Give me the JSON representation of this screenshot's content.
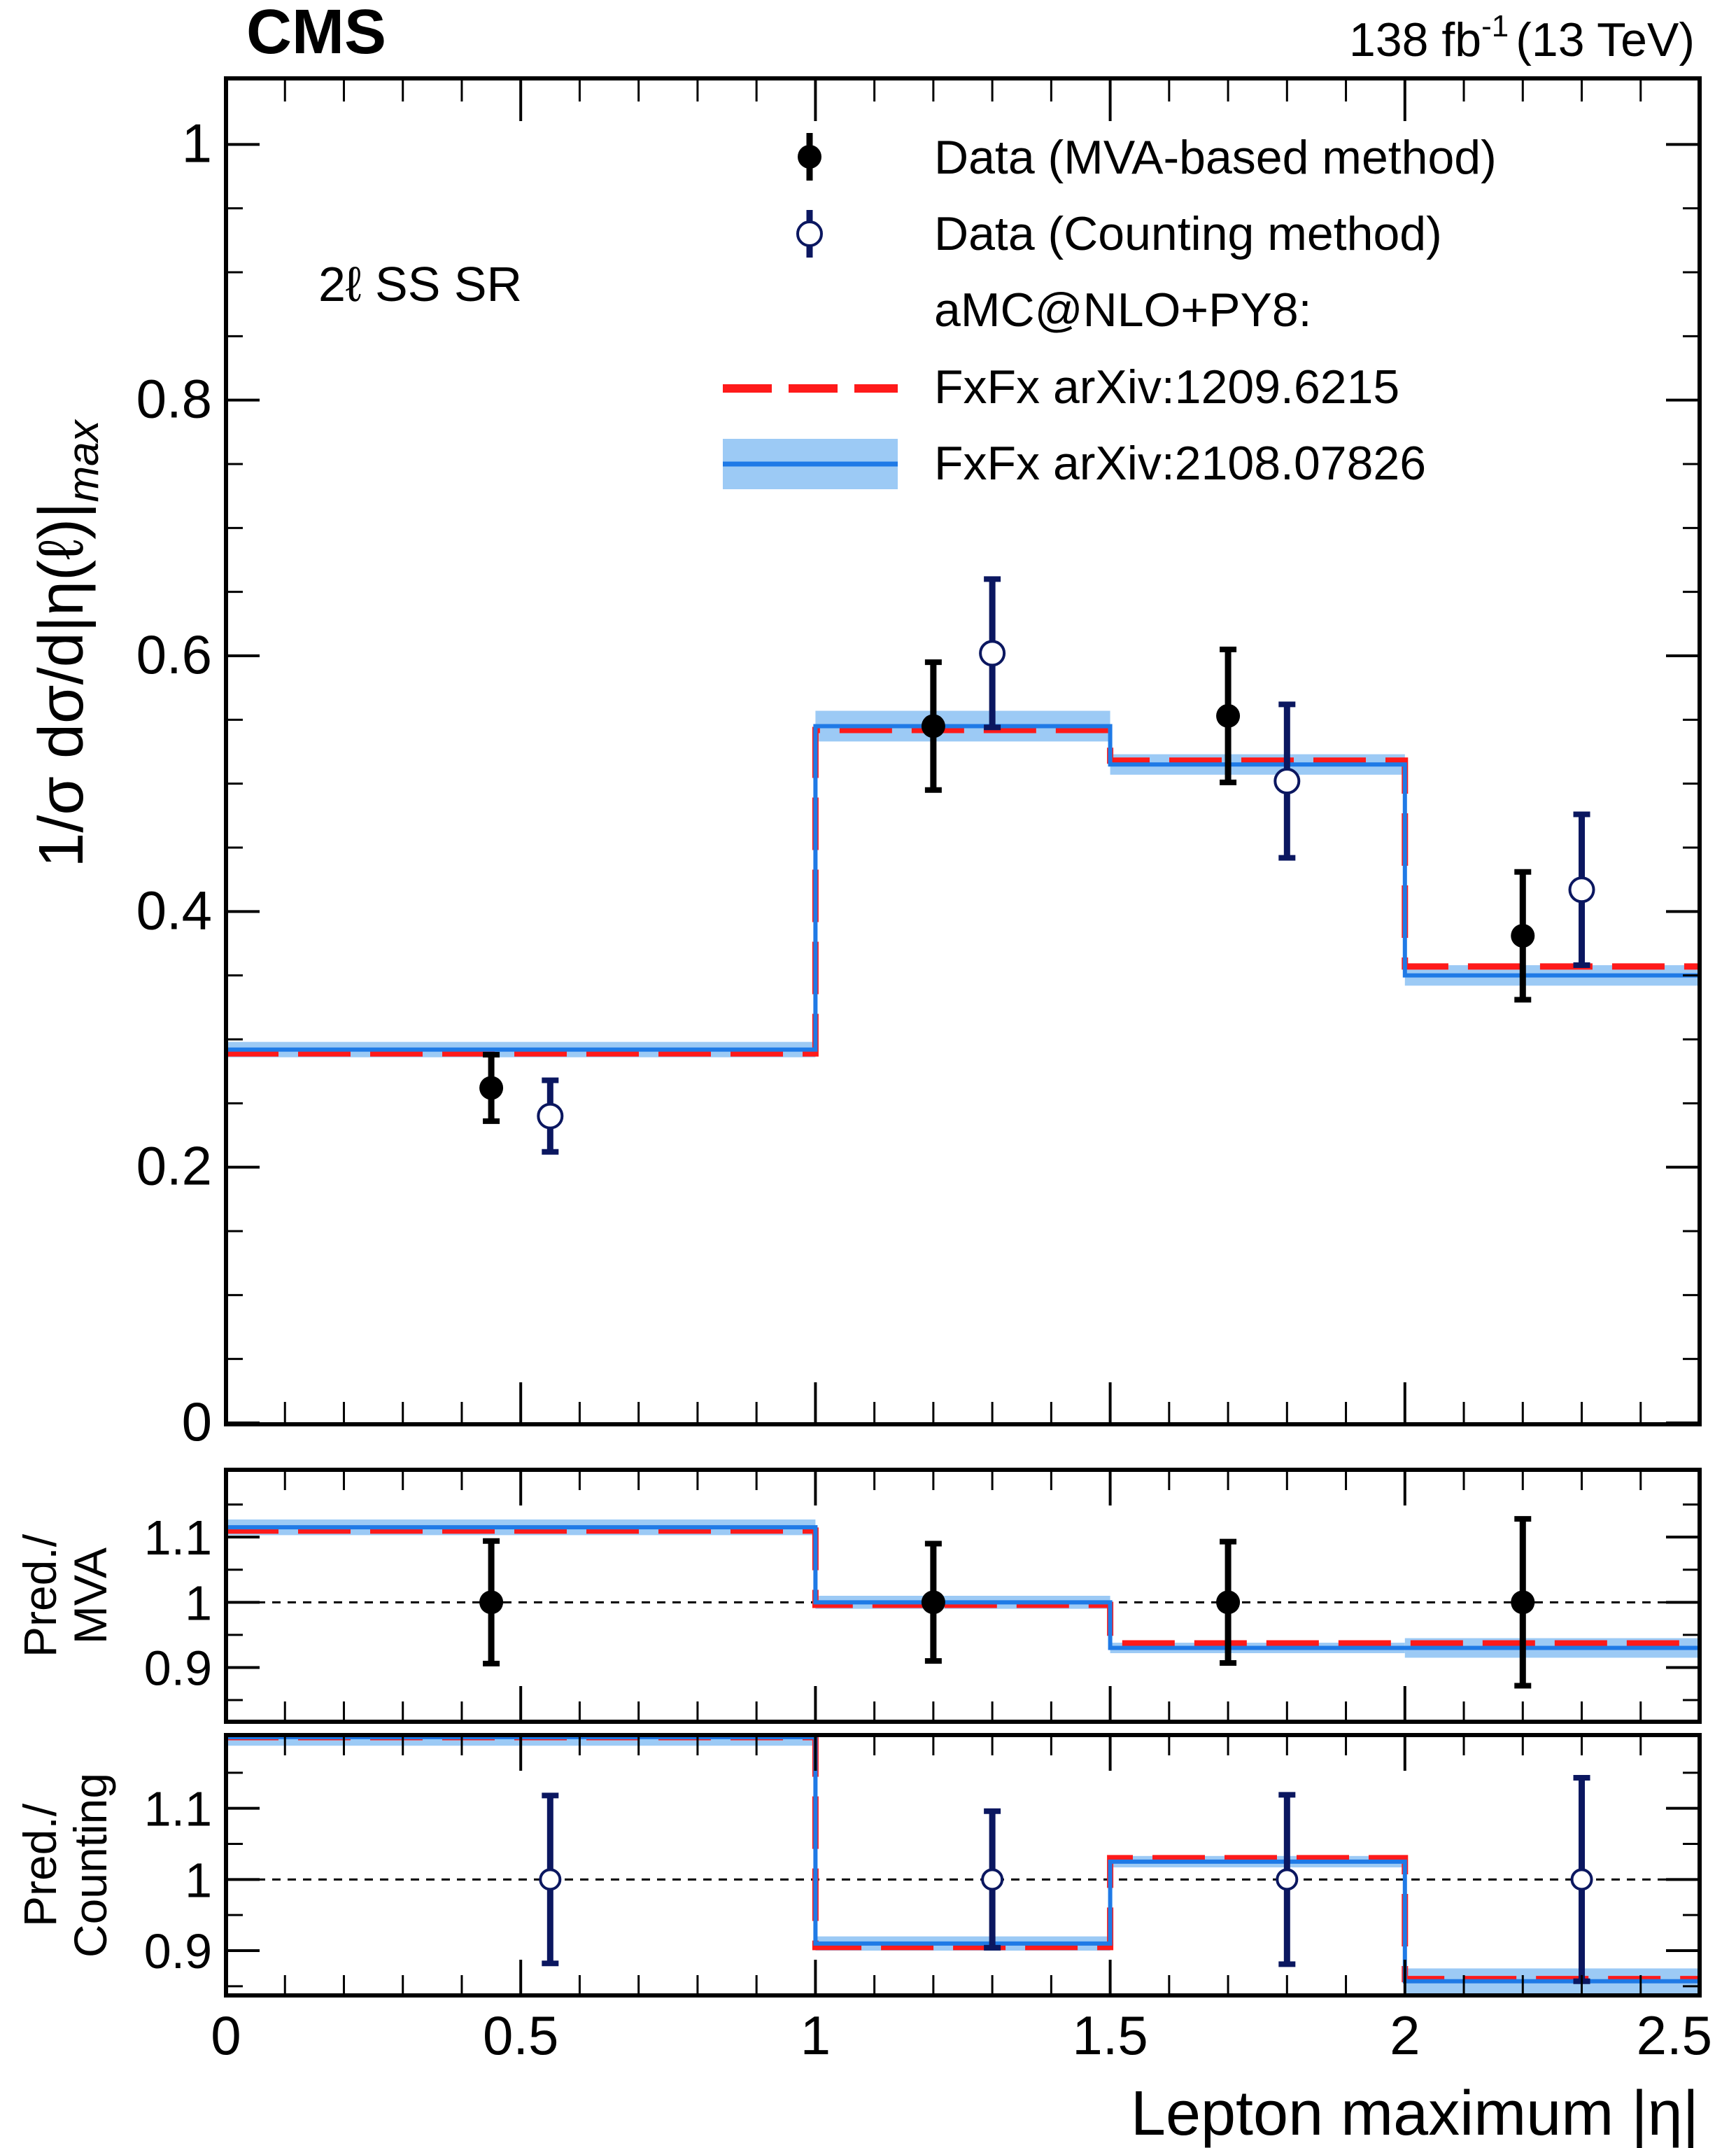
{
  "chart_data": {
    "type": "step-histogram-with-points",
    "experiment": "CMS",
    "lumi_label": "138 fb",
    "lumi_exponent": "-1",
    "energy_label": "(13 TeV)",
    "region_label": "2ℓ SS SR",
    "xlabel": "Lepton maximum |η|",
    "xlim": [
      0,
      2.5
    ],
    "bin_edges": [
      0,
      1.0,
      1.5,
      2.0,
      2.5
    ],
    "x_ticks": [
      {
        "value": 0,
        "label": "0"
      },
      {
        "value": 0.5,
        "label": "0.5"
      },
      {
        "value": 1,
        "label": "1"
      },
      {
        "value": 1.5,
        "label": "1.5"
      },
      {
        "value": 2,
        "label": "2"
      },
      {
        "value": 2.5,
        "label": "2.5"
      }
    ],
    "legend": {
      "mva": "Data (MVA-based method)",
      "counting": "Data (Counting method)",
      "generator_header": "aMC@NLO+PY8:",
      "fxfx_old": "FxFx arXiv:1209.6215",
      "fxfx_new": "FxFx arXiv:2108.07826"
    },
    "colors": {
      "mva": "#000000",
      "counting": "#0b1760",
      "fxfx_old": "#ff1a1a",
      "fxfx_new": "#1f7ae6",
      "fxfx_new_band": "#9ccaf5"
    },
    "main": {
      "ylabel": "1/σ dσ/d|η(ℓ)|",
      "ylabel_subscript": "max",
      "ylim": [
        0,
        1.05
      ],
      "y_ticks": [
        {
          "value": 0,
          "label": "0"
        },
        {
          "value": 0.2,
          "label": "0.2"
        },
        {
          "value": 0.4,
          "label": "0.4"
        },
        {
          "value": 0.6,
          "label": "0.6"
        },
        {
          "value": 0.8,
          "label": "0.8"
        },
        {
          "value": 1,
          "label": "1"
        }
      ],
      "fxfx_old": [
        0.289,
        0.542,
        0.518,
        0.357
      ],
      "fxfx_new": [
        0.292,
        0.545,
        0.515,
        0.35
      ],
      "fxfx_new_band": [
        0.006,
        0.012,
        0.008,
        0.008
      ],
      "mva_points": [
        {
          "x": 0.45,
          "y": 0.262,
          "err": 0.026
        },
        {
          "x": 1.2,
          "y": 0.545,
          "err": 0.05
        },
        {
          "x": 1.7,
          "y": 0.553,
          "err": 0.052
        },
        {
          "x": 2.2,
          "y": 0.381,
          "err": 0.05
        }
      ],
      "counting_points": [
        {
          "x": 0.55,
          "y": 0.24,
          "err": 0.028
        },
        {
          "x": 1.3,
          "y": 0.602,
          "err": 0.058
        },
        {
          "x": 1.8,
          "y": 0.502,
          "err": 0.06
        },
        {
          "x": 2.3,
          "y": 0.417,
          "err": 0.059
        }
      ]
    },
    "ratio_mva": {
      "ylabel_line1": "Pred./",
      "ylabel_line2": "MVA",
      "ylim": [
        0.82,
        1.2
      ],
      "y_ticks": [
        {
          "value": 0.9,
          "label": "0.9"
        },
        {
          "value": 1.0,
          "label": "1"
        },
        {
          "value": 1.1,
          "label": "1.1"
        }
      ],
      "fxfx_old": [
        1.11,
        0.996,
        0.937,
        0.937
      ],
      "fxfx_new": [
        1.115,
        1.0,
        0.93,
        0.93
      ],
      "fxfx_new_band": [
        0.012,
        0.01,
        0.008,
        0.015
      ],
      "points": [
        {
          "x": 0.45,
          "y": 1.0,
          "err": 0.094
        },
        {
          "x": 1.2,
          "y": 1.0,
          "err": 0.09
        },
        {
          "x": 1.7,
          "y": 1.0,
          "err": 0.093
        },
        {
          "x": 2.2,
          "y": 1.0,
          "err": 0.128
        }
      ]
    },
    "ratio_counting": {
      "ylabel_line1": "Pred./",
      "ylabel_line2": "Counting",
      "ylim": [
        0.84,
        1.2
      ],
      "y_ticks": [
        {
          "value": 0.9,
          "label": "0.9"
        },
        {
          "value": 1.0,
          "label": "1"
        },
        {
          "value": 1.1,
          "label": "1.1"
        }
      ],
      "fxfx_old": [
        1.2,
        0.905,
        1.03,
        0.86
      ],
      "fxfx_new": [
        1.2,
        0.91,
        1.025,
        0.857
      ],
      "fxfx_new_band": [
        0.012,
        0.01,
        0.008,
        0.018
      ],
      "points": [
        {
          "x": 0.55,
          "y": 1.0,
          "err": 0.118
        },
        {
          "x": 1.3,
          "y": 1.0,
          "err": 0.096
        },
        {
          "x": 1.8,
          "y": 1.0,
          "err": 0.119
        },
        {
          "x": 2.3,
          "y": 1.0,
          "err": 0.143
        }
      ]
    }
  }
}
